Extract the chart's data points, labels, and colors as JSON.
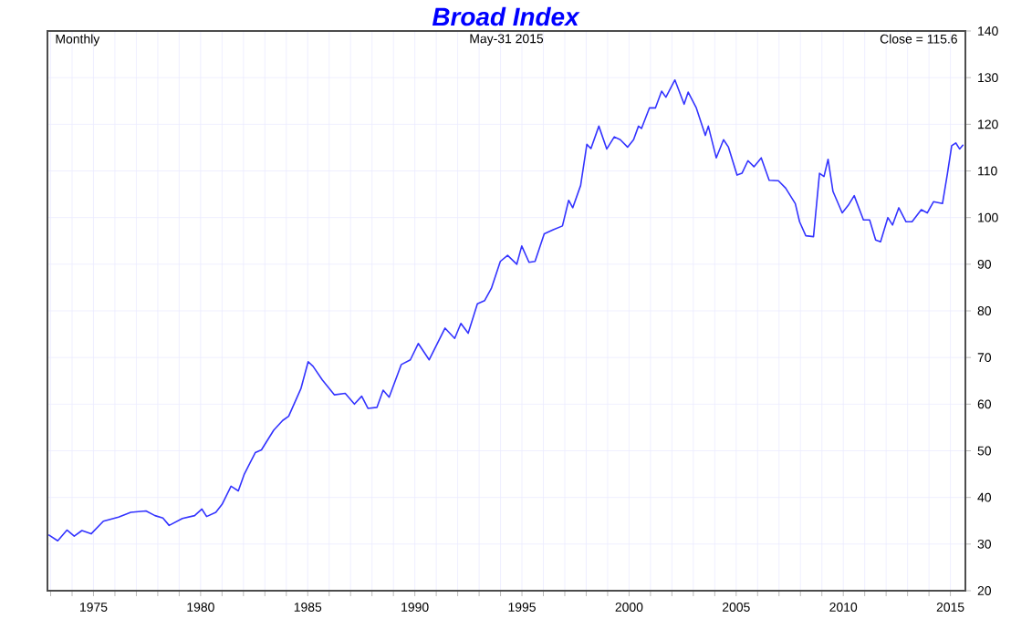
{
  "chart_data": {
    "type": "line",
    "title": "Broad Index",
    "annotations": [
      "Monthly",
      "May-31  2015",
      "Close = 115.6"
    ],
    "xlim": [
      1972.85,
      2015.7
    ],
    "ylim": [
      20,
      140
    ],
    "yticks": [
      20,
      30,
      40,
      50,
      60,
      70,
      80,
      90,
      100,
      110,
      120,
      130,
      140
    ],
    "xticks": [
      {
        "value": 1973,
        "label": null
      },
      {
        "value": 1974,
        "label": null
      },
      1975,
      {
        "value": 1976,
        "label": null
      },
      {
        "value": 1977,
        "label": null
      },
      {
        "value": 1978,
        "label": null
      },
      {
        "value": 1979,
        "label": null
      },
      1980,
      {
        "value": 1981,
        "label": null
      },
      {
        "value": 1982,
        "label": null
      },
      {
        "value": 1983,
        "label": null
      },
      {
        "value": 1984,
        "label": null
      },
      1985,
      {
        "value": 1986,
        "label": null
      },
      {
        "value": 1987,
        "label": null
      },
      {
        "value": 1988,
        "label": null
      },
      {
        "value": 1989,
        "label": null
      },
      1990,
      {
        "value": 1991,
        "label": null
      },
      {
        "value": 1992,
        "label": null
      },
      {
        "value": 1993,
        "label": null
      },
      {
        "value": 1994,
        "label": null
      },
      1995,
      {
        "value": 1996,
        "label": null
      },
      {
        "value": 1997,
        "label": null
      },
      {
        "value": 1998,
        "label": null
      },
      {
        "value": 1999,
        "label": null
      },
      2000,
      {
        "value": 2001,
        "label": null
      },
      {
        "value": 2002,
        "label": null
      },
      {
        "value": 2003,
        "label": null
      },
      {
        "value": 2004,
        "label": null
      },
      2005,
      {
        "value": 2006,
        "label": null
      },
      {
        "value": 2007,
        "label": null
      },
      {
        "value": 2008,
        "label": null
      },
      {
        "value": 2009,
        "label": null
      },
      2010,
      {
        "value": 2011,
        "label": null
      },
      {
        "value": 2012,
        "label": null
      },
      {
        "value": 2013,
        "label": null
      },
      {
        "value": 2014,
        "label": null
      },
      2015
    ],
    "grid": true,
    "marker": "none",
    "line_style": "solid",
    "series": [
      {
        "color": "#3333ff",
        "x": [
          1972.9,
          1973.33,
          1973.76,
          1974.1,
          1974.46,
          1974.89,
          1975.46,
          1976.17,
          1976.74,
          1977.45,
          1977.87,
          1978.24,
          1978.53,
          1979.15,
          1979.72,
          1980.06,
          1980.28,
          1980.71,
          1981.0,
          1981.42,
          1981.76,
          1982.04,
          1982.55,
          1982.84,
          1983.41,
          1983.83,
          1984.11,
          1984.68,
          1985.02,
          1985.25,
          1985.68,
          1986.24,
          1986.75,
          1987.18,
          1987.52,
          1987.81,
          1988.23,
          1988.52,
          1988.8,
          1989.37,
          1989.79,
          1990.16,
          1990.67,
          1991.41,
          1991.86,
          1992.15,
          1992.49,
          1992.92,
          1993.26,
          1993.57,
          1993.99,
          1994.33,
          1994.76,
          1994.99,
          1995.33,
          1995.61,
          1996.04,
          1996.46,
          1996.89,
          1997.18,
          1997.37,
          1997.74,
          1998.03,
          1998.22,
          1998.59,
          1998.96,
          1999.31,
          1999.59,
          1999.93,
          2000.21,
          2000.44,
          2000.58,
          2000.95,
          2001.23,
          2001.52,
          2001.72,
          2002.14,
          2002.57,
          2002.76,
          2003.14,
          2003.56,
          2003.7,
          2004.07,
          2004.41,
          2004.64,
          2005.04,
          2005.27,
          2005.55,
          2005.83,
          2006.17,
          2006.54,
          2006.97,
          2007.31,
          2007.76,
          2007.96,
          2008.25,
          2008.61,
          2008.89,
          2009.1,
          2009.29,
          2009.52,
          2009.95,
          2010.23,
          2010.51,
          2010.94,
          2011.23,
          2011.51,
          2011.74,
          2012.08,
          2012.3,
          2012.59,
          2012.93,
          2013.21,
          2013.64,
          2013.92,
          2014.21,
          2014.63,
          2014.86,
          2015.06,
          2015.25,
          2015.43,
          2015.6
        ],
        "values": [
          32.0,
          30.7,
          33.0,
          31.7,
          32.9,
          32.2,
          34.9,
          35.8,
          36.8,
          37.1,
          36.1,
          35.6,
          34.0,
          35.5,
          36.1,
          37.5,
          35.9,
          36.8,
          38.5,
          42.4,
          41.4,
          45.0,
          49.6,
          50.2,
          54.4,
          56.5,
          57.4,
          63.3,
          69.1,
          68.1,
          65.2,
          62.0,
          62.3,
          60.0,
          61.7,
          59.1,
          59.3,
          63.0,
          61.5,
          68.5,
          69.5,
          73.0,
          69.5,
          76.3,
          74.1,
          77.3,
          75.2,
          81.5,
          82.2,
          84.8,
          90.6,
          91.9,
          90.0,
          93.9,
          90.4,
          90.6,
          96.5,
          97.4,
          98.2,
          103.7,
          102.1,
          106.9,
          115.7,
          114.8,
          119.6,
          114.7,
          117.3,
          116.7,
          115.1,
          116.7,
          119.6,
          119.1,
          123.5,
          123.5,
          127.1,
          125.8,
          129.5,
          124.3,
          126.9,
          123.5,
          117.6,
          119.6,
          112.8,
          116.7,
          115.1,
          109.1,
          109.5,
          112.2,
          110.9,
          112.8,
          108.0,
          107.9,
          106.3,
          103.0,
          99.1,
          96.1,
          95.9,
          109.5,
          108.8,
          112.5,
          105.6,
          101.0,
          102.6,
          104.7,
          99.5,
          99.5,
          95.2,
          94.8,
          100.0,
          98.4,
          102.1,
          99.1,
          99.1,
          101.7,
          101.0,
          103.4,
          103.0,
          109.4,
          115.4,
          116.0,
          114.7,
          115.6
        ]
      }
    ]
  }
}
